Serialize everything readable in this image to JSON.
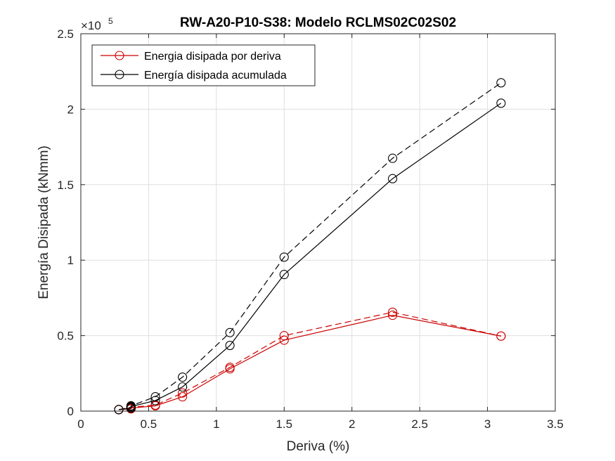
{
  "chart_data": {
    "type": "line",
    "title": "RW-A20-P10-S38: Modelo RCLMS02C02S02",
    "xlabel": "Deriva (%)",
    "ylabel": "Energía Disipada (kNmm)",
    "xlim": [
      0,
      3.5
    ],
    "ylim": [
      0,
      2.5
    ],
    "y_exponent_label": "×10",
    "y_exponent_power": "5",
    "grid": true,
    "legend_position": "top-left",
    "x_tick_labels": [
      "0",
      "0.5",
      "1",
      "1.5",
      "2",
      "2.5",
      "3",
      "3.5"
    ],
    "x_ticks": [
      0,
      0.5,
      1,
      1.5,
      2,
      2.5,
      3,
      3.5
    ],
    "y_tick_labels": [
      "0",
      "0.5",
      "1",
      "1.5",
      "2",
      "2.5"
    ],
    "y_ticks": [
      0,
      0.5,
      1,
      1.5,
      2,
      2.5
    ],
    "legend": [
      {
        "label": "Energia disipada por deriva",
        "color": "#cc0000"
      },
      {
        "label": "Energía disipada acumulada",
        "color": "#000000"
      }
    ],
    "series": [
      {
        "name": "Energia disipada por deriva",
        "color": "#cc0000",
        "dash": "solid",
        "in_legend": true,
        "x": [
          0.28,
          0.37,
          0.37,
          0.55,
          0.75,
          1.1,
          1.5,
          2.3,
          3.1
        ],
        "y": [
          0.01,
          0.015,
          0.02,
          0.035,
          0.095,
          0.28,
          0.47,
          0.635,
          0.497
        ]
      },
      {
        "name": "Energia disipada por deriva",
        "color": "#cc0000",
        "dash": "dashed",
        "in_legend": false,
        "x": [
          0.28,
          0.37,
          0.37,
          0.55,
          0.75,
          1.1,
          1.5,
          2.3,
          3.1
        ],
        "y": [
          0.01,
          0.02,
          0.025,
          0.04,
          0.12,
          0.29,
          0.5,
          0.655,
          0.497
        ]
      },
      {
        "name": "Energía disipada acumulada",
        "color": "#000000",
        "dash": "solid",
        "in_legend": true,
        "x": [
          0.28,
          0.37,
          0.37,
          0.55,
          0.75,
          1.1,
          1.5,
          2.3,
          3.1
        ],
        "y": [
          0.01,
          0.02,
          0.03,
          0.07,
          0.16,
          0.435,
          0.905,
          1.54,
          2.04
        ]
      },
      {
        "name": "Energía disipada acumulada",
        "color": "#000000",
        "dash": "dashed",
        "in_legend": false,
        "x": [
          0.28,
          0.37,
          0.37,
          0.55,
          0.75,
          1.1,
          1.5,
          2.3,
          3.1
        ],
        "y": [
          0.01,
          0.025,
          0.035,
          0.095,
          0.225,
          0.52,
          1.02,
          1.675,
          2.175
        ]
      }
    ]
  }
}
